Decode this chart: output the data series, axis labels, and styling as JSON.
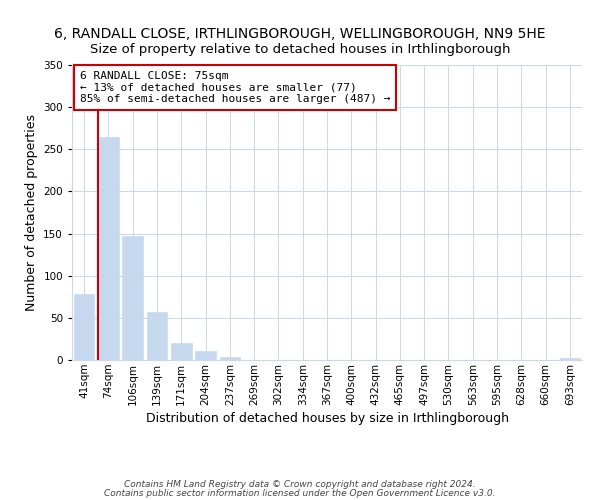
{
  "title": "6, RANDALL CLOSE, IRTHLINGBOROUGH, WELLINGBOROUGH, NN9 5HE",
  "subtitle": "Size of property relative to detached houses in Irthlingborough",
  "xlabel": "Distribution of detached houses by size in Irthlingborough",
  "ylabel": "Number of detached properties",
  "bar_color": "#c5d8ee",
  "bar_edge_color": "#c5d8ee",
  "categories": [
    "41sqm",
    "74sqm",
    "106sqm",
    "139sqm",
    "171sqm",
    "204sqm",
    "237sqm",
    "269sqm",
    "302sqm",
    "334sqm",
    "367sqm",
    "400sqm",
    "432sqm",
    "465sqm",
    "497sqm",
    "530sqm",
    "563sqm",
    "595sqm",
    "628sqm",
    "660sqm",
    "693sqm"
  ],
  "values": [
    78,
    265,
    147,
    57,
    20,
    11,
    3,
    0,
    0,
    0,
    0,
    0,
    0,
    0,
    0,
    0,
    0,
    0,
    0,
    0,
    2
  ],
  "ylim": [
    0,
    350
  ],
  "yticks": [
    0,
    50,
    100,
    150,
    200,
    250,
    300,
    350
  ],
  "property_line_color": "#cc0000",
  "annotation_line1": "6 RANDALL CLOSE: 75sqm",
  "annotation_line2": "← 13% of detached houses are smaller (77)",
  "annotation_line3": "85% of semi-detached houses are larger (487) →",
  "annotation_box_color": "#ffffff",
  "annotation_box_edge": "#cc0000",
  "footer1": "Contains HM Land Registry data © Crown copyright and database right 2024.",
  "footer2": "Contains public sector information licensed under the Open Government Licence v3.0.",
  "background_color": "#ffffff",
  "grid_color": "#c8d8e8",
  "title_fontsize": 10,
  "subtitle_fontsize": 9.5,
  "axis_label_fontsize": 9,
  "tick_fontsize": 7.5,
  "annotation_fontsize": 8,
  "footer_fontsize": 6.5
}
